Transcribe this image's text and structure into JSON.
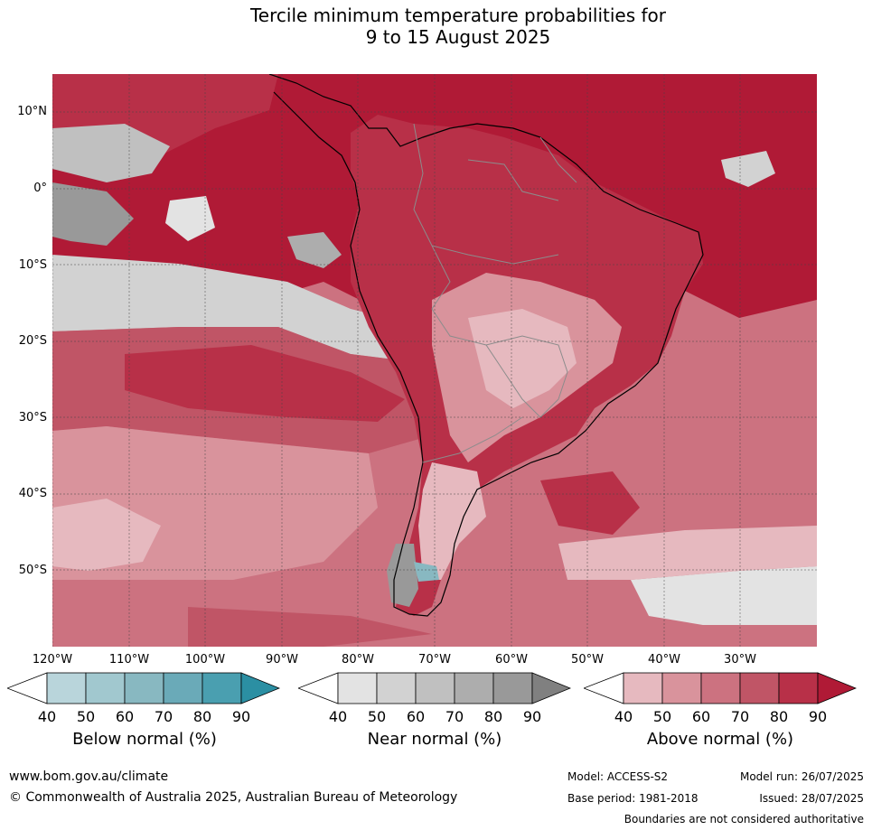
{
  "title": {
    "line1": "Tercile minimum temperature probabilities for",
    "line2": "9 to 15 August 2025"
  },
  "lat_ticks": [
    "10°N",
    "0°",
    "10°S",
    "20°S",
    "30°S",
    "40°S",
    "50°S"
  ],
  "lon_ticks": [
    "120°W",
    "110°W",
    "100°W",
    "90°W",
    "80°W",
    "70°W",
    "60°W",
    "50°W",
    "40°W",
    "30°W"
  ],
  "colors": {
    "sea_below_na": "#ffffff",
    "above_40": "#e6b9bf",
    "above_50": "#d9939c",
    "above_60": "#cc7280",
    "above_70": "#c05566",
    "above_80": "#b83048",
    "above_90": "#b01a36",
    "near_40": "#e3e3e3",
    "near_50": "#d2d2d2",
    "near_60": "#c0c0c0",
    "near_70": "#adadad",
    "near_80": "#999999",
    "near_90": "#808080",
    "below_40": "#b9d5db",
    "below_50": "#a1c8cf",
    "below_60": "#88b8c1",
    "below_70": "#6aaab8",
    "below_80": "#4a9fb0",
    "below_90": "#2b8fa3",
    "coast": "#000000",
    "border": "#8c8c8c"
  },
  "colorbars": [
    {
      "title": "Below normal (%)",
      "labels": [
        "40",
        "50",
        "60",
        "70",
        "80",
        "90"
      ],
      "colors": [
        "#b9d5db",
        "#a1c8cf",
        "#88b8c1",
        "#6aaab8",
        "#4a9fb0",
        "#2b8fa3"
      ]
    },
    {
      "title": "Near normal (%)",
      "labels": [
        "40",
        "50",
        "60",
        "70",
        "80",
        "90"
      ],
      "colors": [
        "#e3e3e3",
        "#d2d2d2",
        "#c0c0c0",
        "#adadad",
        "#999999",
        "#808080"
      ]
    },
    {
      "title": "Above normal (%)",
      "labels": [
        "40",
        "50",
        "60",
        "70",
        "80",
        "90"
      ],
      "colors": [
        "#e6b9bf",
        "#d9939c",
        "#cc7280",
        "#c05566",
        "#b83048",
        "#b01a36"
      ]
    }
  ],
  "footer": {
    "website": "www.bom.gov.au/climate",
    "copyright": "© Commonwealth of Australia 2025, Australian Bureau of Meteorology",
    "model": "Model: ACCESS-S2",
    "base_period": "Base period: 1981-2018",
    "model_run": "Model run: 26/07/2025",
    "issued": "Issued: 28/07/2025",
    "disclaimer": "Boundaries are not considered authoritative"
  }
}
